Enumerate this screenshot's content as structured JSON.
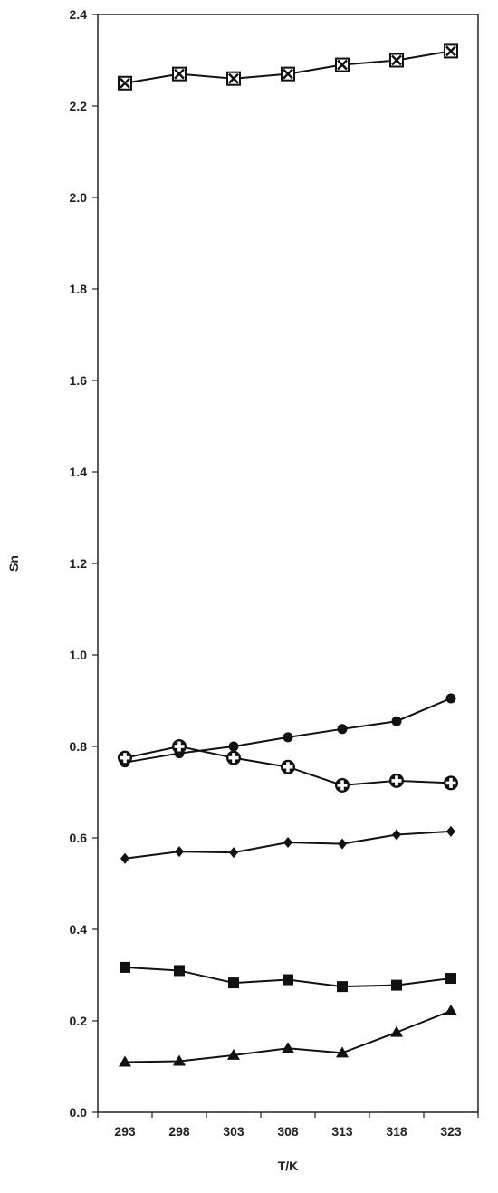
{
  "chart_data": {
    "type": "line",
    "title": "",
    "xlabel": "T/K",
    "ylabel": "Sn",
    "x": [
      293,
      298,
      303,
      308,
      313,
      318,
      323
    ],
    "x_tick_labels": [
      "293",
      "298",
      "303",
      "308",
      "313",
      "318",
      "323"
    ],
    "ylim": [
      0.0,
      2.4
    ],
    "y_ticks": [
      0.0,
      0.2,
      0.4,
      0.6,
      0.8,
      1.0,
      1.2,
      1.4,
      1.6,
      1.8,
      2.0,
      2.2,
      2.4
    ],
    "y_tick_labels": [
      "0.0",
      "0.2",
      "0.4",
      "0.6",
      "0.8",
      "1.0",
      "1.2",
      "1.4",
      "1.6",
      "1.8",
      "2.0",
      "2.2",
      "2.4"
    ],
    "grid": false,
    "legend": "none",
    "series": [
      {
        "marker": "crossed-square",
        "values": [
          2.25,
          2.27,
          2.26,
          2.27,
          2.29,
          2.3,
          2.32
        ]
      },
      {
        "marker": "circle",
        "values": [
          0.765,
          0.785,
          0.8,
          0.82,
          0.838,
          0.855,
          0.905
        ]
      },
      {
        "marker": "plus-circle",
        "values": [
          0.775,
          0.8,
          0.775,
          0.755,
          0.715,
          0.725,
          0.72
        ]
      },
      {
        "marker": "diamond",
        "values": [
          0.555,
          0.57,
          0.568,
          0.59,
          0.587,
          0.607,
          0.614
        ]
      },
      {
        "marker": "square",
        "values": [
          0.317,
          0.31,
          0.283,
          0.29,
          0.275,
          0.278,
          0.293
        ]
      },
      {
        "marker": "triangle",
        "values": [
          0.11,
          0.112,
          0.125,
          0.14,
          0.13,
          0.175,
          0.222
        ]
      }
    ]
  }
}
